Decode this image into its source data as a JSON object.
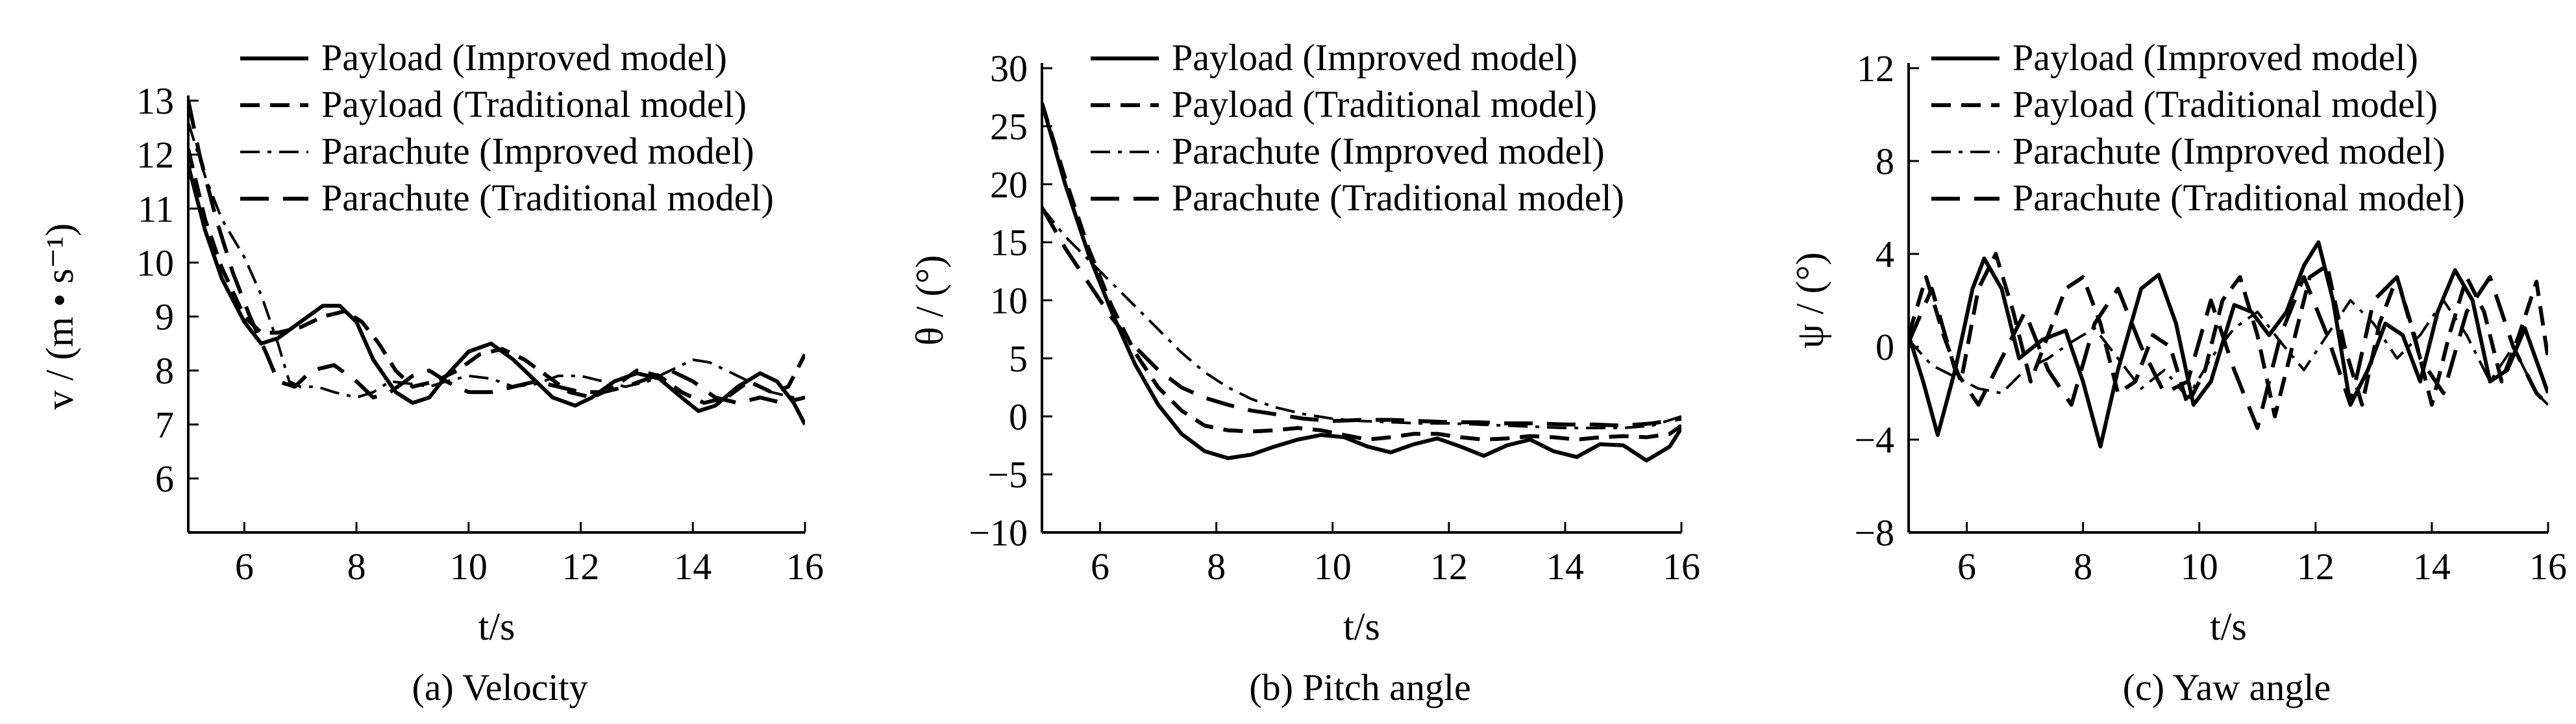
{
  "chart_data": [
    {
      "type": "line",
      "caption": "(a)  Velocity",
      "ylabel": "v / (m • s⁻¹)",
      "xlabel": "t/s",
      "xlim": [
        5,
        16
      ],
      "ylim": [
        5,
        13
      ],
      "xticks": [
        6,
        8,
        10,
        12,
        14,
        16
      ],
      "yticks": [
        6,
        7,
        8,
        9,
        10,
        11,
        12,
        13
      ],
      "legend_position": "top-right",
      "series": [
        {
          "name": "Payload (Improved model)",
          "style": "solid",
          "x": [
            5,
            5.3,
            5.6,
            6,
            6.3,
            6.6,
            7,
            7.4,
            7.7,
            8,
            8.3,
            8.7,
            9,
            9.3,
            9.6,
            10,
            10.4,
            10.8,
            11.2,
            11.5,
            11.9,
            12.2,
            12.6,
            13,
            13.4,
            13.8,
            14.1,
            14.4,
            14.8,
            15.2,
            15.5,
            15.8,
            16
          ],
          "y": [
            11.8,
            10.6,
            9.7,
            8.9,
            8.5,
            8.6,
            8.9,
            9.2,
            9.2,
            8.9,
            8.2,
            7.6,
            7.4,
            7.5,
            7.9,
            8.35,
            8.5,
            8.2,
            7.8,
            7.5,
            7.35,
            7.5,
            7.8,
            7.95,
            7.85,
            7.5,
            7.25,
            7.35,
            7.7,
            7.95,
            7.8,
            7.4,
            7.0
          ]
        },
        {
          "name": "Payload (Traditional model)",
          "style": "dashed",
          "x": [
            5,
            5.3,
            5.6,
            6,
            6.3,
            6.6,
            7,
            7.4,
            7.8,
            8.1,
            8.4,
            8.7,
            9,
            9.4,
            9.8,
            10.2,
            10.6,
            11,
            11.4,
            11.8,
            12.2,
            12.6,
            13,
            13.4,
            13.8,
            14.2,
            14.6,
            15,
            15.4,
            15.7,
            16
          ],
          "y": [
            12.1,
            10.8,
            9.9,
            9.0,
            8.7,
            8.7,
            8.8,
            9.0,
            9.1,
            8.9,
            8.5,
            8.0,
            7.7,
            7.8,
            8.0,
            8.3,
            8.4,
            8.2,
            7.9,
            7.6,
            7.5,
            7.7,
            8.0,
            7.9,
            7.6,
            7.4,
            7.5,
            7.8,
            7.6,
            7.7,
            8.3
          ]
        },
        {
          "name": "Parachute (Improved model)",
          "style": "dashdot",
          "x": [
            5,
            5.3,
            5.6,
            6,
            6.3,
            6.6,
            6.8,
            7,
            7.3,
            7.6,
            8,
            8.3,
            8.6,
            9,
            9.3,
            9.6,
            10,
            10.4,
            10.8,
            11.2,
            11.6,
            12,
            12.4,
            12.8,
            13.2,
            13.6,
            14,
            14.3,
            14.6,
            15,
            15.4,
            15.8,
            16
          ],
          "y": [
            12.6,
            11.6,
            10.8,
            10.1,
            9.4,
            8.5,
            7.8,
            7.7,
            7.7,
            7.6,
            7.5,
            7.6,
            7.8,
            7.75,
            7.7,
            7.8,
            7.9,
            7.85,
            7.7,
            7.75,
            7.9,
            7.9,
            7.8,
            7.7,
            7.8,
            8.0,
            8.2,
            8.15,
            8.0,
            7.8,
            7.6,
            7.5,
            7.5
          ]
        },
        {
          "name": "Parachute (Traditional model)",
          "style": "longdash",
          "x": [
            5,
            5.2,
            5.5,
            5.8,
            6.1,
            6.4,
            6.6,
            6.9,
            7.2,
            7.6,
            8,
            8.3,
            8.6,
            9,
            9.3,
            9.6,
            10,
            10.4,
            10.8,
            11.2,
            11.6,
            12,
            12.4,
            12.8,
            13.2,
            13.6,
            14,
            14.4,
            14.8,
            15.2,
            15.6,
            16
          ],
          "y": [
            13.0,
            12.0,
            10.8,
            9.8,
            9.0,
            8.3,
            7.8,
            7.7,
            8.0,
            8.1,
            7.8,
            7.5,
            7.6,
            7.9,
            8.0,
            7.8,
            7.6,
            7.6,
            7.7,
            7.8,
            7.7,
            7.6,
            7.6,
            7.7,
            7.85,
            8.0,
            7.8,
            7.5,
            7.4,
            7.5,
            7.4,
            7.5
          ]
        }
      ]
    },
    {
      "type": "line",
      "caption": "(b) Pitch angle",
      "ylabel": "θ / (°)",
      "xlabel": "t/s",
      "xlim": [
        5,
        16
      ],
      "ylim": [
        -10,
        30
      ],
      "xticks": [
        6,
        8,
        10,
        12,
        14,
        16
      ],
      "yticks": [
        -10,
        -5,
        0,
        5,
        10,
        15,
        20,
        25,
        30
      ],
      "legend_position": "top-right",
      "series": [
        {
          "name": "Payload (Improved model)",
          "style": "solid",
          "x": [
            5,
            5.4,
            5.8,
            6.2,
            6.6,
            7,
            7.4,
            7.8,
            8.2,
            8.6,
            9,
            9.4,
            9.8,
            10.2,
            10.6,
            11,
            11.4,
            11.8,
            12.2,
            12.6,
            13,
            13.4,
            13.8,
            14.2,
            14.6,
            15,
            15.4,
            15.8,
            16
          ],
          "y": [
            27,
            20,
            14,
            9,
            4.5,
            1,
            -1.5,
            -3,
            -3.6,
            -3.3,
            -2.6,
            -2,
            -1.6,
            -1.8,
            -2.6,
            -3.1,
            -2.4,
            -1.9,
            -2.6,
            -3.4,
            -2.5,
            -2.0,
            -3.0,
            -3.5,
            -2.4,
            -2.5,
            -3.8,
            -2.6,
            -1.0
          ]
        },
        {
          "name": "Payload (Traditional model)",
          "style": "dashed",
          "x": [
            5,
            5.4,
            5.8,
            6.2,
            6.6,
            7,
            7.4,
            7.8,
            8.2,
            8.6,
            9,
            9.4,
            9.8,
            10.2,
            10.6,
            11,
            11.4,
            11.8,
            12.2,
            12.6,
            13,
            13.4,
            13.8,
            14.2,
            14.6,
            15,
            15.4,
            15.8,
            16
          ],
          "y": [
            27,
            20.5,
            14.5,
            9.5,
            5.5,
            2.5,
            0.5,
            -0.8,
            -1.2,
            -1.3,
            -1.2,
            -1.0,
            -1.2,
            -1.6,
            -2.0,
            -1.8,
            -1.5,
            -1.5,
            -1.8,
            -2.0,
            -1.9,
            -1.7,
            -1.8,
            -2.0,
            -1.8,
            -1.7,
            -1.8,
            -1.5,
            -0.8
          ]
        },
        {
          "name": "Parachute (Improved model)",
          "style": "dashdot",
          "x": [
            5,
            5.4,
            5.8,
            6.2,
            6.6,
            7,
            7.4,
            7.8,
            8.2,
            8.6,
            9,
            9.5,
            10,
            10.5,
            11,
            11.5,
            12,
            12.5,
            13,
            13.5,
            14,
            14.5,
            15,
            15.5,
            16
          ],
          "y": [
            18,
            15.5,
            13.5,
            11.5,
            9.5,
            7.5,
            5.5,
            3.8,
            2.5,
            1.5,
            0.8,
            0.2,
            -0.2,
            -0.4,
            -0.5,
            -0.6,
            -0.6,
            -0.7,
            -0.8,
            -0.9,
            -1.0,
            -1.0,
            -1.0,
            -0.8,
            0.0
          ]
        },
        {
          "name": "Parachute (Traditional model)",
          "style": "longdash",
          "x": [
            5,
            5.4,
            5.8,
            6.2,
            6.6,
            7,
            7.4,
            7.8,
            8.2,
            8.6,
            9,
            9.5,
            10,
            10.5,
            11,
            11.5,
            12,
            12.5,
            13,
            13.5,
            14,
            14.5,
            15,
            15.5,
            16
          ],
          "y": [
            18,
            14.5,
            11.5,
            8.5,
            6,
            4,
            2.5,
            1.6,
            1.0,
            0.5,
            0.2,
            -0.2,
            -0.4,
            -0.3,
            -0.3,
            -0.4,
            -0.5,
            -0.5,
            -0.6,
            -0.6,
            -0.7,
            -0.7,
            -0.8,
            -0.6,
            -0.2
          ]
        }
      ]
    },
    {
      "type": "line",
      "caption": "(c) Yaw angle",
      "ylabel": "ψ / (°)",
      "xlabel": "t/s",
      "xlim": [
        5,
        16
      ],
      "ylim": [
        -8,
        12
      ],
      "xticks": [
        6,
        8,
        10,
        12,
        14,
        16
      ],
      "yticks": [
        -8,
        -4,
        0,
        4,
        8,
        12
      ],
      "ytick_labels": [
        "−8",
        "−4",
        "0",
        "4",
        "8",
        "12"
      ],
      "legend_position": "top-right",
      "series": [
        {
          "name": "Payload (Improved model)",
          "style": "solid",
          "x": [
            5,
            5.25,
            5.5,
            5.8,
            6.1,
            6.3,
            6.6,
            6.9,
            7.3,
            7.7,
            8.0,
            8.3,
            8.6,
            9.0,
            9.3,
            9.6,
            9.9,
            10.2,
            10.6,
            10.9,
            11.2,
            11.5,
            11.8,
            12.05,
            12.3,
            12.6,
            12.9,
            13.2,
            13.5,
            13.8,
            14.1,
            14.4,
            14.7,
            15.0,
            15.3,
            15.6,
            16
          ],
          "y": [
            0.5,
            -1.5,
            -3.8,
            -1.0,
            2.5,
            3.8,
            2.5,
            -0.5,
            0.3,
            0.7,
            -1.5,
            -4.3,
            -1.0,
            2.5,
            3.1,
            1.0,
            -2.5,
            -1.5,
            1.8,
            1.5,
            0.5,
            1.5,
            3.5,
            4.5,
            2.0,
            -2.5,
            -1.0,
            1.0,
            0.5,
            -1.5,
            1.5,
            3.3,
            2.0,
            -1.5,
            -1.0,
            0.8,
            -2.0
          ]
        },
        {
          "name": "Payload (Traditional model)",
          "style": "dashed",
          "x": [
            5,
            5.3,
            5.6,
            5.9,
            6.2,
            6.5,
            6.8,
            7.1,
            7.4,
            7.7,
            8.0,
            8.3,
            8.6,
            8.9,
            9.2,
            9.5,
            9.8,
            10.1,
            10.4,
            10.7,
            11.0,
            11.3,
            11.6,
            11.9,
            12.2,
            12.5,
            12.8,
            13.1,
            13.4,
            13.7,
            14.0,
            14.3,
            14.6,
            14.9,
            15.2,
            15.5,
            15.8,
            16
          ],
          "y": [
            0.5,
            3.0,
            0.5,
            -1.5,
            2.5,
            4.0,
            1.5,
            -1.5,
            0.5,
            2.5,
            3.0,
            1.0,
            -2.0,
            -1.5,
            0.5,
            0.0,
            -2.5,
            -1.0,
            2.0,
            3.0,
            0.5,
            -3.0,
            0.0,
            3.0,
            3.5,
            0.0,
            -2.5,
            1.0,
            3.0,
            0.5,
            -2.5,
            0.5,
            3.0,
            1.5,
            -1.5,
            0.5,
            2.8,
            -0.5
          ]
        },
        {
          "name": "Parachute (Improved model)",
          "style": "dashdot",
          "x": [
            5,
            5.4,
            5.8,
            6.2,
            6.6,
            7.0,
            7.4,
            7.8,
            8.2,
            8.6,
            9.0,
            9.4,
            9.8,
            10.2,
            10.6,
            11.0,
            11.4,
            11.8,
            12.2,
            12.6,
            13.0,
            13.4,
            13.8,
            14.2,
            14.6,
            15.0,
            15.4,
            15.8,
            16
          ],
          "y": [
            0.3,
            -0.8,
            -1.3,
            -1.8,
            -2.0,
            -1.0,
            -0.5,
            0.2,
            0.8,
            -0.5,
            -1.8,
            -1.0,
            -2.2,
            -0.5,
            0.8,
            1.5,
            0.2,
            -1.0,
            0.5,
            2.0,
            1.0,
            -0.5,
            0.5,
            2.0,
            0.5,
            -1.5,
            0.0,
            -2.0,
            -2.5
          ]
        },
        {
          "name": "Parachute (Traditional model)",
          "style": "longdash",
          "x": [
            5,
            5.4,
            5.8,
            6.2,
            6.6,
            7.0,
            7.4,
            7.8,
            8.2,
            8.6,
            9.0,
            9.4,
            9.8,
            10.2,
            10.6,
            11.0,
            11.4,
            11.8,
            12.2,
            12.6,
            13.0,
            13.4,
            13.8,
            14.2,
            14.6,
            15.0,
            15.4,
            15.8,
            16
          ],
          "y": [
            0.2,
            2.5,
            -1.0,
            -2.5,
            -0.5,
            1.5,
            -1.0,
            -2.5,
            1.0,
            2.5,
            0.0,
            -2.0,
            -1.5,
            2.0,
            -1.0,
            -3.5,
            0.5,
            3.0,
            0.5,
            -2.5,
            2.0,
            3.0,
            -0.5,
            -2.0,
            1.5,
            3.0,
            0.0,
            -2.0,
            -2.5
          ]
        }
      ]
    }
  ]
}
